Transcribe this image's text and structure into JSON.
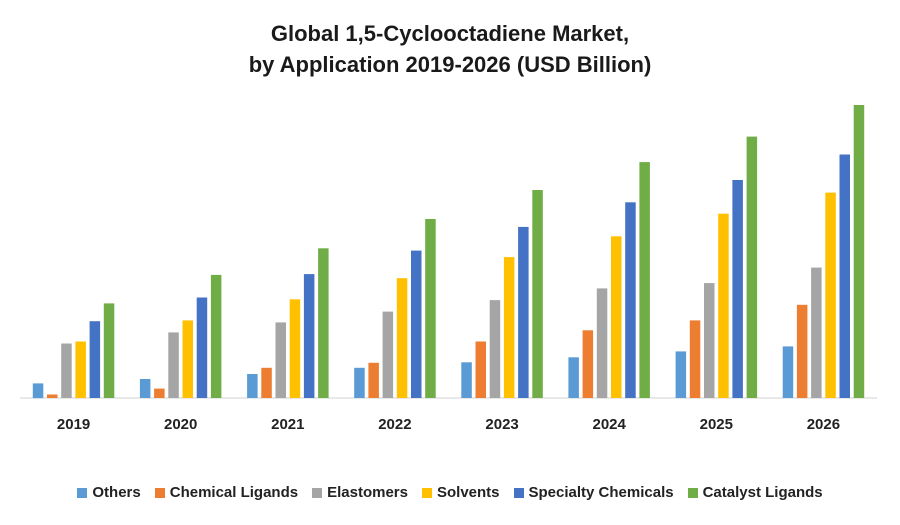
{
  "chart_data": {
    "type": "bar",
    "title_line1": "Global 1,5-Cyclooctadiene Market,",
    "title_line2": "by Application 2019-2026 (USD Billion)",
    "categories": [
      "2019",
      "2020",
      "2021",
      "2022",
      "2023",
      "2024",
      "2025",
      "2026"
    ],
    "ylim": [
      0,
      100
    ],
    "grid": false,
    "legend_position": "bottom",
    "series": [
      {
        "name": "Others",
        "color": "#5B9BD5",
        "values": [
          5,
          6.5,
          8.2,
          10.3,
          12.2,
          13.9,
          15.9,
          17.6
        ]
      },
      {
        "name": "Chemical Ligands",
        "color": "#ED7D31",
        "values": [
          1.2,
          3.2,
          10.3,
          12,
          19.3,
          23.1,
          26.5,
          31.8
        ]
      },
      {
        "name": "Elastomers",
        "color": "#A5A5A5",
        "values": [
          18.6,
          22.4,
          25.8,
          29.5,
          33.4,
          37.4,
          39.2,
          44.5
        ]
      },
      {
        "name": "Solvents",
        "color": "#FFC000",
        "values": [
          19.3,
          26.5,
          33.7,
          40.9,
          48.1,
          55.2,
          62.9,
          70.1
        ]
      },
      {
        "name": "Specialty Chemicals",
        "color": "#4472C4",
        "values": [
          26.2,
          34.3,
          42.3,
          50.3,
          58.4,
          66.8,
          74.4,
          83.1
        ]
      },
      {
        "name": "Catalyst Ligands",
        "color": "#70AD47",
        "values": [
          32.3,
          42,
          51.1,
          61.1,
          71,
          80.5,
          89.2,
          100
        ]
      }
    ]
  }
}
